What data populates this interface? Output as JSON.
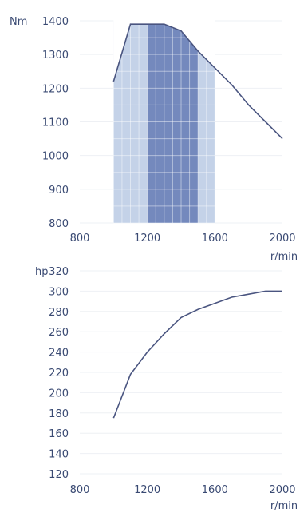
{
  "chart_data": [
    {
      "type": "area",
      "ylabel": "Nm",
      "xlabel": "r/min",
      "xlim": [
        800,
        2000
      ],
      "ylim": [
        800,
        1400
      ],
      "x_ticks": [
        "800",
        "1200",
        "1600",
        "2000"
      ],
      "y_ticks": [
        "800",
        "900",
        "1000",
        "1100",
        "1200",
        "1300",
        "1400"
      ],
      "x": [
        1000,
        1100,
        1200,
        1300,
        1400,
        1500,
        1600,
        1700,
        1800,
        1900,
        2000
      ],
      "values": [
        1220,
        1390,
        1390,
        1390,
        1370,
        1310,
        1260,
        1210,
        1150,
        1100,
        1050
      ],
      "bands": [
        {
          "from": 1000,
          "to": 1600,
          "color": "#c4d2e8"
        },
        {
          "from": 1200,
          "to": 1500,
          "color": "#7489bd"
        }
      ],
      "colors": {
        "line": "#4a5580",
        "text": "#3a4a73"
      }
    },
    {
      "type": "line",
      "ylabel": "hp",
      "xlabel": "r/min",
      "xlim": [
        800,
        2000
      ],
      "ylim": [
        120,
        320
      ],
      "x_ticks": [
        "800",
        "1200",
        "1600",
        "2000"
      ],
      "y_ticks": [
        "120",
        "140",
        "160",
        "180",
        "200",
        "220",
        "240",
        "260",
        "280",
        "300",
        "320"
      ],
      "x": [
        1000,
        1100,
        1200,
        1300,
        1400,
        1500,
        1600,
        1700,
        1800,
        1900,
        2000
      ],
      "values": [
        175,
        218,
        240,
        258,
        274,
        282,
        288,
        294,
        297,
        300,
        300
      ],
      "colors": {
        "line": "#4a5580",
        "text": "#3a4a73"
      }
    }
  ]
}
